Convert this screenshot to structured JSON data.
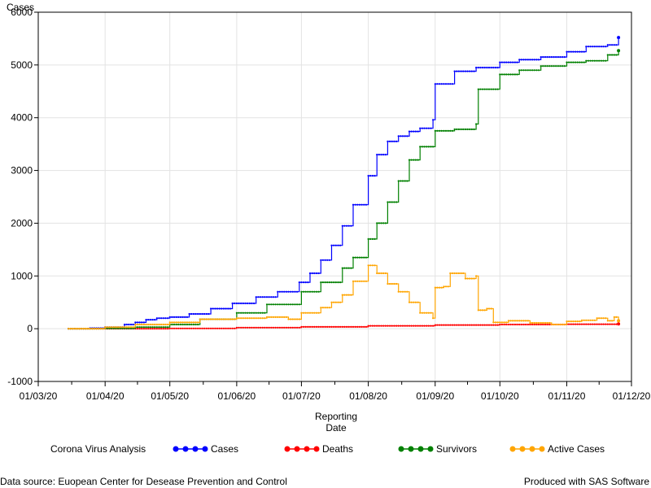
{
  "chart_data": {
    "type": "line",
    "title": "",
    "xlabel_line1": "Reporting",
    "xlabel_line2": "Date",
    "ylabel": "Cases",
    "x_ticks": [
      "01/03/20",
      "01/04/20",
      "01/05/20",
      "01/06/20",
      "01/07/20",
      "01/08/20",
      "01/09/20",
      "01/10/20",
      "01/11/20",
      "01/12/20"
    ],
    "y_ticks": [
      "-1000",
      "0",
      "1000",
      "2000",
      "3000",
      "4000",
      "5000",
      "6000"
    ],
    "xlim": [
      "2020-03-01",
      "2020-12-01"
    ],
    "ylim": [
      -1000,
      6000
    ],
    "grid": true,
    "legend_title": "Corona Virus Analysis",
    "legend_position": "bottom",
    "series": [
      {
        "name": "Cases",
        "color": "#0000ff",
        "points": [
          [
            "2020-03-15",
            0
          ],
          [
            "2020-03-25",
            10
          ],
          [
            "2020-04-01",
            30
          ],
          [
            "2020-04-10",
            80
          ],
          [
            "2020-04-15",
            120
          ],
          [
            "2020-04-20",
            170
          ],
          [
            "2020-04-25",
            200
          ],
          [
            "2020-05-01",
            220
          ],
          [
            "2020-05-10",
            280
          ],
          [
            "2020-05-20",
            380
          ],
          [
            "2020-05-30",
            480
          ],
          [
            "2020-06-10",
            600
          ],
          [
            "2020-06-20",
            700
          ],
          [
            "2020-06-30",
            880
          ],
          [
            "2020-07-05",
            1050
          ],
          [
            "2020-07-10",
            1300
          ],
          [
            "2020-07-15",
            1580
          ],
          [
            "2020-07-20",
            1950
          ],
          [
            "2020-07-25",
            2350
          ],
          [
            "2020-08-01",
            2900
          ],
          [
            "2020-08-05",
            3300
          ],
          [
            "2020-08-10",
            3550
          ],
          [
            "2020-08-15",
            3650
          ],
          [
            "2020-08-20",
            3740
          ],
          [
            "2020-08-25",
            3800
          ],
          [
            "2020-08-31",
            3960
          ],
          [
            "2020-09-01",
            4640
          ],
          [
            "2020-09-05",
            4640
          ],
          [
            "2020-09-10",
            4880
          ],
          [
            "2020-09-20",
            4950
          ],
          [
            "2020-10-01",
            5050
          ],
          [
            "2020-10-10",
            5100
          ],
          [
            "2020-10-20",
            5150
          ],
          [
            "2020-11-01",
            5250
          ],
          [
            "2020-11-10",
            5350
          ],
          [
            "2020-11-20",
            5380
          ],
          [
            "2020-11-25",
            5520
          ]
        ]
      },
      {
        "name": "Deaths",
        "color": "#ff0000",
        "points": [
          [
            "2020-03-15",
            0
          ],
          [
            "2020-05-01",
            5
          ],
          [
            "2020-06-01",
            20
          ],
          [
            "2020-07-01",
            35
          ],
          [
            "2020-08-01",
            55
          ],
          [
            "2020-09-01",
            70
          ],
          [
            "2020-10-01",
            80
          ],
          [
            "2020-11-01",
            85
          ],
          [
            "2020-11-25",
            90
          ]
        ]
      },
      {
        "name": "Survivors",
        "color": "#008000",
        "points": [
          [
            "2020-03-15",
            0
          ],
          [
            "2020-04-01",
            5
          ],
          [
            "2020-04-15",
            30
          ],
          [
            "2020-05-01",
            80
          ],
          [
            "2020-05-15",
            180
          ],
          [
            "2020-06-01",
            300
          ],
          [
            "2020-06-15",
            460
          ],
          [
            "2020-07-01",
            700
          ],
          [
            "2020-07-10",
            880
          ],
          [
            "2020-07-20",
            1150
          ],
          [
            "2020-07-25",
            1350
          ],
          [
            "2020-08-01",
            1700
          ],
          [
            "2020-08-05",
            2000
          ],
          [
            "2020-08-10",
            2400
          ],
          [
            "2020-08-15",
            2800
          ],
          [
            "2020-08-20",
            3200
          ],
          [
            "2020-08-25",
            3450
          ],
          [
            "2020-09-01",
            3750
          ],
          [
            "2020-09-10",
            3780
          ],
          [
            "2020-09-20",
            3880
          ],
          [
            "2020-09-21",
            4540
          ],
          [
            "2020-10-01",
            4820
          ],
          [
            "2020-10-10",
            4900
          ],
          [
            "2020-10-20",
            4980
          ],
          [
            "2020-11-01",
            5050
          ],
          [
            "2020-11-10",
            5080
          ],
          [
            "2020-11-20",
            5190
          ],
          [
            "2020-11-25",
            5270
          ]
        ]
      },
      {
        "name": "Active Cases",
        "color": "#ffa500",
        "points": [
          [
            "2020-03-15",
            0
          ],
          [
            "2020-04-01",
            30
          ],
          [
            "2020-04-15",
            80
          ],
          [
            "2020-05-01",
            120
          ],
          [
            "2020-05-15",
            180
          ],
          [
            "2020-06-01",
            200
          ],
          [
            "2020-06-15",
            220
          ],
          [
            "2020-06-25",
            180
          ],
          [
            "2020-07-01",
            300
          ],
          [
            "2020-07-10",
            400
          ],
          [
            "2020-07-15",
            500
          ],
          [
            "2020-07-20",
            640
          ],
          [
            "2020-07-25",
            900
          ],
          [
            "2020-08-01",
            1200
          ],
          [
            "2020-08-05",
            1050
          ],
          [
            "2020-08-10",
            850
          ],
          [
            "2020-08-15",
            700
          ],
          [
            "2020-08-20",
            500
          ],
          [
            "2020-08-25",
            300
          ],
          [
            "2020-08-31",
            200
          ],
          [
            "2020-09-01",
            780
          ],
          [
            "2020-09-05",
            800
          ],
          [
            "2020-09-08",
            1050
          ],
          [
            "2020-09-15",
            950
          ],
          [
            "2020-09-20",
            1000
          ],
          [
            "2020-09-21",
            350
          ],
          [
            "2020-09-25",
            380
          ],
          [
            "2020-09-28",
            120
          ],
          [
            "2020-10-05",
            150
          ],
          [
            "2020-10-15",
            110
          ],
          [
            "2020-10-25",
            80
          ],
          [
            "2020-11-01",
            140
          ],
          [
            "2020-11-08",
            160
          ],
          [
            "2020-11-15",
            200
          ],
          [
            "2020-11-20",
            150
          ],
          [
            "2020-11-23",
            220
          ],
          [
            "2020-11-25",
            150
          ]
        ]
      }
    ]
  },
  "footer": {
    "source": "Data source: Euopean Center for Desease Prevention and Control",
    "produced": "Produced with SAS Software"
  }
}
